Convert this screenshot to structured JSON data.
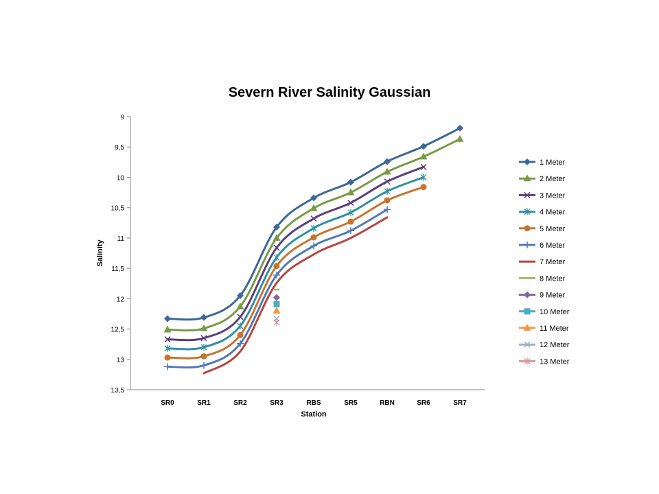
{
  "chart_data": {
    "type": "line",
    "title": "Severn River Salinity Gaussian",
    "xlabel": "Station",
    "ylabel": "Salinity",
    "categories": [
      "SR0",
      "SR1",
      "SR2",
      "SR3",
      "RBS",
      "SR5",
      "RBN",
      "SR6",
      "SR7"
    ],
    "ylim": [
      9,
      13.5
    ],
    "y_reversed": true,
    "yticks": [
      9,
      9.5,
      10,
      10.5,
      11,
      11.5,
      12,
      12.5,
      13,
      13.5
    ],
    "ytick_labels": [
      "9",
      "9,5",
      "10",
      "10,5",
      "11",
      "11,5",
      "12",
      "12,5",
      "13",
      "13,5"
    ],
    "grid": false,
    "legend_position": "right",
    "series": [
      {
        "name": "1 Meter",
        "color": "#3b679a",
        "marker": "diamond",
        "values": [
          12.33,
          12.31,
          11.95,
          10.82,
          10.34,
          10.08,
          9.74,
          9.49,
          9.19
        ]
      },
      {
        "name": "2 Meter",
        "color": "#7a9a45",
        "marker": "triangle",
        "values": [
          12.51,
          12.49,
          12.13,
          11.0,
          10.51,
          10.25,
          9.91,
          9.66,
          9.37
        ]
      },
      {
        "name": "3 Meter",
        "color": "#5a3e7c",
        "marker": "x",
        "values": [
          12.67,
          12.65,
          12.3,
          11.16,
          10.68,
          10.42,
          10.07,
          9.83,
          null
        ]
      },
      {
        "name": "4 Meter",
        "color": "#2f8fa5",
        "marker": "asterisk",
        "values": [
          12.82,
          12.8,
          12.45,
          11.32,
          10.84,
          10.58,
          10.23,
          10.0,
          null
        ]
      },
      {
        "name": "5 Meter",
        "color": "#c9742e",
        "marker": "circle",
        "values": [
          12.97,
          12.95,
          12.6,
          11.46,
          10.99,
          10.73,
          10.38,
          10.16,
          null
        ]
      },
      {
        "name": "6 Meter",
        "color": "#4f7ab5",
        "marker": "plus",
        "values": [
          13.12,
          13.1,
          12.74,
          11.61,
          11.13,
          10.88,
          10.53,
          null,
          null
        ]
      },
      {
        "name": "7 Meter",
        "color": "#b84440",
        "marker": "dash",
        "values": [
          null,
          13.23,
          12.87,
          11.74,
          11.27,
          11.0,
          10.66,
          null,
          null
        ]
      },
      {
        "name": "8 Meter",
        "color": "#9bbb59",
        "marker": "dash",
        "values": [
          null,
          null,
          null,
          11.85,
          null,
          null,
          null,
          null,
          null
        ]
      },
      {
        "name": "9 Meter",
        "color": "#8064a2",
        "marker": "diamond",
        "values": [
          null,
          null,
          null,
          11.98,
          null,
          null,
          null,
          null,
          null
        ]
      },
      {
        "name": "10 Meter",
        "color": "#4bacc6",
        "marker": "square",
        "values": [
          null,
          null,
          null,
          12.09,
          null,
          null,
          null,
          null,
          null
        ]
      },
      {
        "name": "11 Meter",
        "color": "#f79646",
        "marker": "triangle",
        "values": [
          null,
          null,
          null,
          12.2,
          null,
          null,
          null,
          null,
          null
        ]
      },
      {
        "name": "12 Meter",
        "color": "#95b3d7",
        "marker": "x",
        "values": [
          null,
          null,
          null,
          12.33,
          null,
          null,
          null,
          null,
          null
        ]
      },
      {
        "name": "13 Meter",
        "color": "#d99694",
        "marker": "asterisk",
        "values": [
          null,
          null,
          null,
          12.39,
          null,
          null,
          null,
          null,
          null
        ]
      }
    ]
  }
}
